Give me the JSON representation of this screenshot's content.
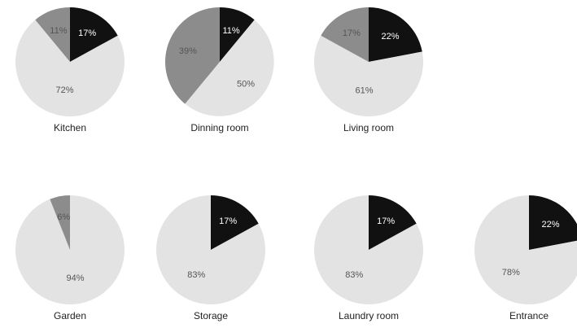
{
  "chart_data": [
    {
      "type": "pie",
      "title": "Kitchen",
      "slices": [
        {
          "value": 17,
          "label": "17%",
          "color": "#111111"
        },
        {
          "value": 72,
          "label": "72%",
          "color": "#e3e3e3"
        },
        {
          "value": 11,
          "label": "11%",
          "color": "#8c8c8c"
        }
      ]
    },
    {
      "type": "pie",
      "title": "Dinning room",
      "slices": [
        {
          "value": 11,
          "label": "11%",
          "color": "#111111"
        },
        {
          "value": 50,
          "label": "50%",
          "color": "#e3e3e3"
        },
        {
          "value": 39,
          "label": "39%",
          "color": "#8c8c8c"
        }
      ]
    },
    {
      "type": "pie",
      "title": "Living room",
      "slices": [
        {
          "value": 22,
          "label": "22%",
          "color": "#111111"
        },
        {
          "value": 61,
          "label": "61%",
          "color": "#e3e3e3"
        },
        {
          "value": 17,
          "label": "17%",
          "color": "#8c8c8c"
        }
      ]
    },
    {
      "type": "pie",
      "title": "Garden",
      "slices": [
        {
          "value": 94,
          "label": "94%",
          "color": "#e3e3e3"
        },
        {
          "value": 6,
          "label": "6%",
          "color": "#8c8c8c"
        }
      ]
    },
    {
      "type": "pie",
      "title": "Storage",
      "slices": [
        {
          "value": 17,
          "label": "17%",
          "color": "#111111"
        },
        {
          "value": 83,
          "label": "83%",
          "color": "#e3e3e3"
        }
      ]
    },
    {
      "type": "pie",
      "title": "Laundry room",
      "slices": [
        {
          "value": 17,
          "label": "17%",
          "color": "#111111"
        },
        {
          "value": 83,
          "label": "83%",
          "color": "#e3e3e3"
        }
      ]
    },
    {
      "type": "pie",
      "title": "Entrance",
      "slices": [
        {
          "value": 22,
          "label": "22%",
          "color": "#111111"
        },
        {
          "value": 78,
          "label": "78%",
          "color": "#e3e3e3"
        }
      ]
    }
  ]
}
